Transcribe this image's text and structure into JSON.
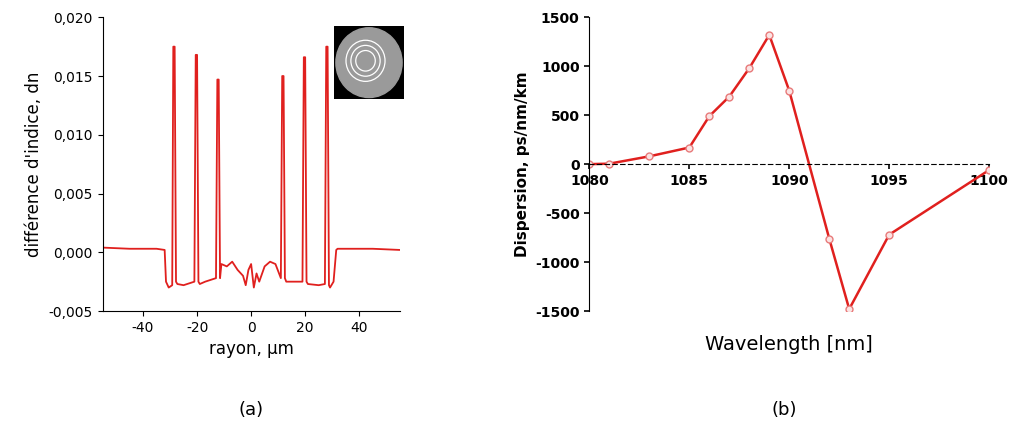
{
  "chart_data": [
    {
      "type": "line",
      "caption": "(a)",
      "x_label": "rayon, µm",
      "y_label": "différence d'indice, dn",
      "x": [
        -55,
        -45,
        -35,
        -32,
        -31.5,
        -30.5,
        -29.2,
        -28.8,
        -28.3,
        -27.8,
        -27.3,
        -25,
        -21,
        -20.5,
        -20,
        -19.5,
        -19,
        -17,
        -13,
        -12.5,
        -12,
        -11.5,
        -11,
        -9,
        -7,
        -5,
        -3,
        -2,
        -1,
        0,
        1,
        2,
        3,
        5,
        7,
        9,
        11,
        11.5,
        12,
        12.5,
        13,
        17,
        19,
        19.5,
        20,
        20.5,
        21,
        25,
        27.3,
        27.8,
        28.3,
        28.8,
        29.2,
        30.5,
        31.5,
        32,
        35,
        45,
        55
      ],
      "values": [
        0.0004,
        0.0003,
        0.0003,
        0.0002,
        -0.0025,
        -0.003,
        -0.0028,
        0.0175,
        0.0175,
        -0.0025,
        -0.0027,
        -0.0028,
        -0.0025,
        0.0168,
        0.0168,
        -0.0025,
        -0.0027,
        -0.0025,
        -0.0022,
        0.0147,
        0.0147,
        -0.0022,
        -0.001,
        -0.0012,
        -0.0008,
        -0.0015,
        -0.002,
        -0.0028,
        -0.0015,
        -0.001,
        -0.003,
        -0.0018,
        -0.0025,
        -0.0012,
        -0.0008,
        -0.001,
        -0.0022,
        0.015,
        0.015,
        -0.0022,
        -0.0025,
        -0.0025,
        -0.0025,
        0.0166,
        0.0166,
        -0.0025,
        -0.0027,
        -0.0028,
        -0.0027,
        0.0175,
        0.0175,
        -0.0028,
        -0.003,
        -0.0025,
        0.0002,
        0.0003,
        0.0003,
        0.0003,
        0.0002
      ],
      "color": "#e0201e",
      "xlim": [
        -55,
        55
      ],
      "xticks": [
        -40,
        -20,
        0,
        20,
        40
      ],
      "ylim": [
        -0.005,
        0.02
      ],
      "yticks": [
        {
          "value": -0.005,
          "label": "-0,005"
        },
        {
          "value": 0,
          "label": "0,000"
        },
        {
          "value": 0.005,
          "label": "0,005"
        },
        {
          "value": 0.01,
          "label": "0,010"
        },
        {
          "value": 0.015,
          "label": "0,015"
        },
        {
          "value": 0.02,
          "label": "0,020"
        }
      ]
    },
    {
      "type": "line",
      "caption": "(b)",
      "x_label": "Wavelength [nm]",
      "y_label": "Dispersion, ps/nm/km",
      "x": [
        1080,
        1081,
        1083,
        1085,
        1086,
        1087,
        1088,
        1089,
        1090,
        1092,
        1093,
        1095,
        1100
      ],
      "values": [
        0,
        5,
        80,
        170,
        490,
        690,
        980,
        1320,
        750,
        -760,
        -1480,
        -720,
        -60
      ],
      "color": "#e0201e",
      "marker": "o",
      "xlim": [
        1080,
        1100
      ],
      "xticks": [
        1080,
        1085,
        1090,
        1095,
        1100
      ],
      "ylim": [
        -1500,
        1500
      ],
      "yticks": [
        -1500,
        -1000,
        -500,
        0,
        500,
        1000,
        1500
      ]
    }
  ]
}
